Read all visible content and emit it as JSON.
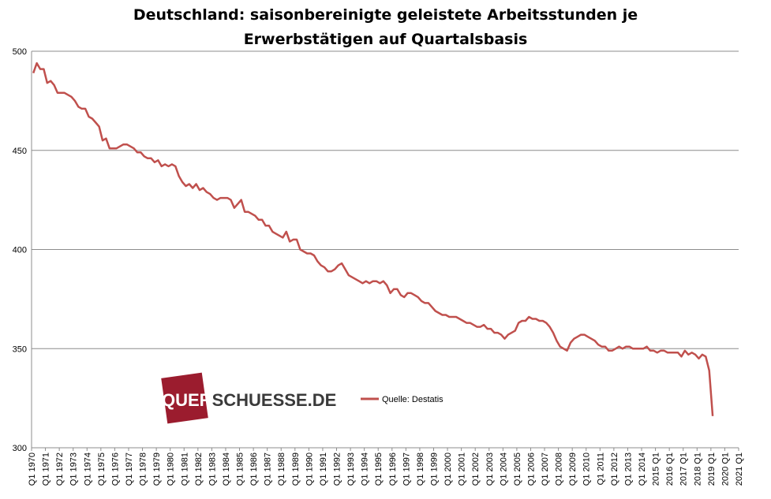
{
  "chart_data": {
    "type": "line",
    "title_line1": "Deutschland: saisonbereinigte geleistete Arbeitsstunden je",
    "title_line2": "Erwerbstätigen auf Quartalsbasis",
    "xlabel": "",
    "ylabel": "",
    "ylim": [
      300,
      500
    ],
    "yticks": [
      300,
      350,
      400,
      450,
      500
    ],
    "grid": true,
    "legend_position": "center",
    "series": [
      {
        "name": "Quelle: Destatis",
        "color": "#c0504d",
        "x_start": "1970 Q1",
        "values": [
          489,
          494,
          491,
          491,
          484,
          485,
          483,
          479,
          479,
          479,
          478,
          477,
          475,
          472,
          471,
          471,
          467,
          466,
          464,
          462,
          455,
          456,
          451,
          451,
          451,
          452,
          453,
          453,
          452,
          451,
          449,
          449,
          447,
          446,
          446,
          444,
          445,
          442,
          443,
          442,
          443,
          442,
          437,
          434,
          432,
          433,
          431,
          433,
          430,
          431,
          429,
          428,
          426,
          425,
          426,
          426,
          426,
          425,
          421,
          423,
          425,
          419,
          419,
          418,
          417,
          415,
          415,
          412,
          412,
          409,
          408,
          407,
          406,
          409,
          404,
          405,
          405,
          400,
          399,
          398,
          398,
          397,
          394,
          392,
          391,
          389,
          389,
          390,
          392,
          393,
          390,
          387,
          386,
          385,
          384,
          383,
          384,
          383,
          384,
          384,
          383,
          384,
          382,
          378,
          380,
          380,
          377,
          376,
          378,
          378,
          377,
          376,
          374,
          373,
          373,
          371,
          369,
          368,
          367,
          367,
          366,
          366,
          366,
          365,
          364,
          363,
          363,
          362,
          361,
          361,
          362,
          360,
          360,
          358,
          358,
          357,
          355,
          357,
          358,
          359,
          363,
          364,
          364,
          366,
          365,
          365,
          364,
          364,
          363,
          361,
          358,
          354,
          351,
          350,
          349,
          353,
          355,
          356,
          357,
          357,
          356,
          355,
          354,
          352,
          351,
          351,
          349,
          349,
          350,
          351,
          350,
          351,
          351,
          350,
          350,
          350,
          350,
          351,
          349,
          349,
          348,
          349,
          349,
          348,
          348,
          348,
          348,
          346,
          349,
          347,
          348,
          347,
          345,
          347,
          346,
          339,
          316
        ]
      }
    ],
    "x_tick_labels": [
      "Q1 1970",
      "Q1 1971",
      "Q1 1972",
      "Q1 1973",
      "Q1 1974",
      "Q1 1975",
      "Q1 1976",
      "Q1 1977",
      "Q1 1978",
      "Q1 1979",
      "Q1 1980",
      "Q1 1981",
      "Q1 1982",
      "Q1 1983",
      "Q1 1984",
      "Q1 1985",
      "Q1 1986",
      "Q1 1987",
      "Q1 1988",
      "Q1 1989",
      "Q1 1990",
      "Q1 1991",
      "Q1 1992",
      "Q1 1993",
      "Q1 1994",
      "Q1 1995",
      "Q1 1996",
      "Q1 1997",
      "Q1 1998",
      "Q1 1999",
      "Q1 2000",
      "Q1 2001",
      "Q1 2002",
      "Q1 2003",
      "Q1 2004",
      "Q1 2005",
      "Q1 2006",
      "Q1 2007",
      "Q1 2008",
      "Q1 2009",
      "Q1 2010",
      "Q1 2011",
      "Q1 2012",
      "Q1 2013",
      "Q1 2014",
      "2015 Q1",
      "2016 Q1",
      "2017 Q1",
      "2018 Q1",
      "2019 Q1",
      "2020 Q1",
      "2021 Q1"
    ]
  },
  "logo": {
    "text_part1": "QUER",
    "text_part2": "SCHUESSE.DE",
    "color_square": "#9b1c2e"
  },
  "legend": {
    "label": "Quelle: Destatis"
  }
}
